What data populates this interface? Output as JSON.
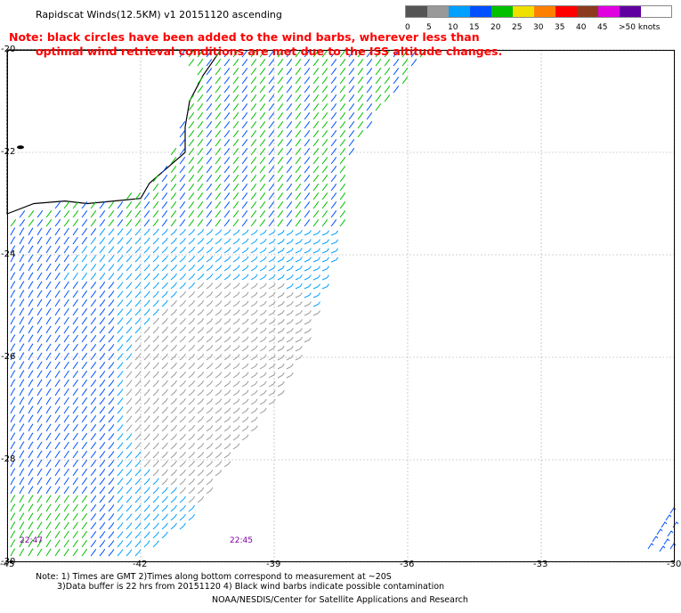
{
  "title": "Rapidscat Winds(12.5KM) v1 20151120 ascending",
  "note_lines": [
    "Note: black circles have been added to the wind barbs, wherever less than",
    "optimal wind retrieval conditions are met due to the ISS altitude changes."
  ],
  "legend": {
    "labels": [
      "0",
      "5",
      "10",
      "15",
      "20",
      "25",
      "30",
      "35",
      "40",
      "45",
      ">50 knots"
    ],
    "colors": [
      "#555555",
      "#999999",
      "#00a0ff",
      "#0050ff",
      "#00c000",
      "#f0e000",
      "#ff8000",
      "#ff0000",
      "#8b3a1e",
      "#e000e0",
      "#6000a0"
    ]
  },
  "axes": {
    "x_ticks": [
      "-45",
      "-42",
      "-39",
      "-36",
      "-33",
      "-30"
    ],
    "y_ticks": [
      "-20",
      "-22",
      "-24",
      "-26",
      "-28",
      "-30"
    ],
    "lon_range": [
      -45,
      -30
    ],
    "lat_range": [
      -30,
      -20
    ]
  },
  "time_labels": [
    "22:47",
    "22:45"
  ],
  "footer": [
    "Note: 1) Times are GMT 2)Times along bottom correspond to measurement at ~20S",
    "3)Data buffer is 22 hrs from 20151120 4) Black wind barbs indicate possible contamination",
    "NOAA/NESDIS/Center for Satellite Applications and Research"
  ]
}
